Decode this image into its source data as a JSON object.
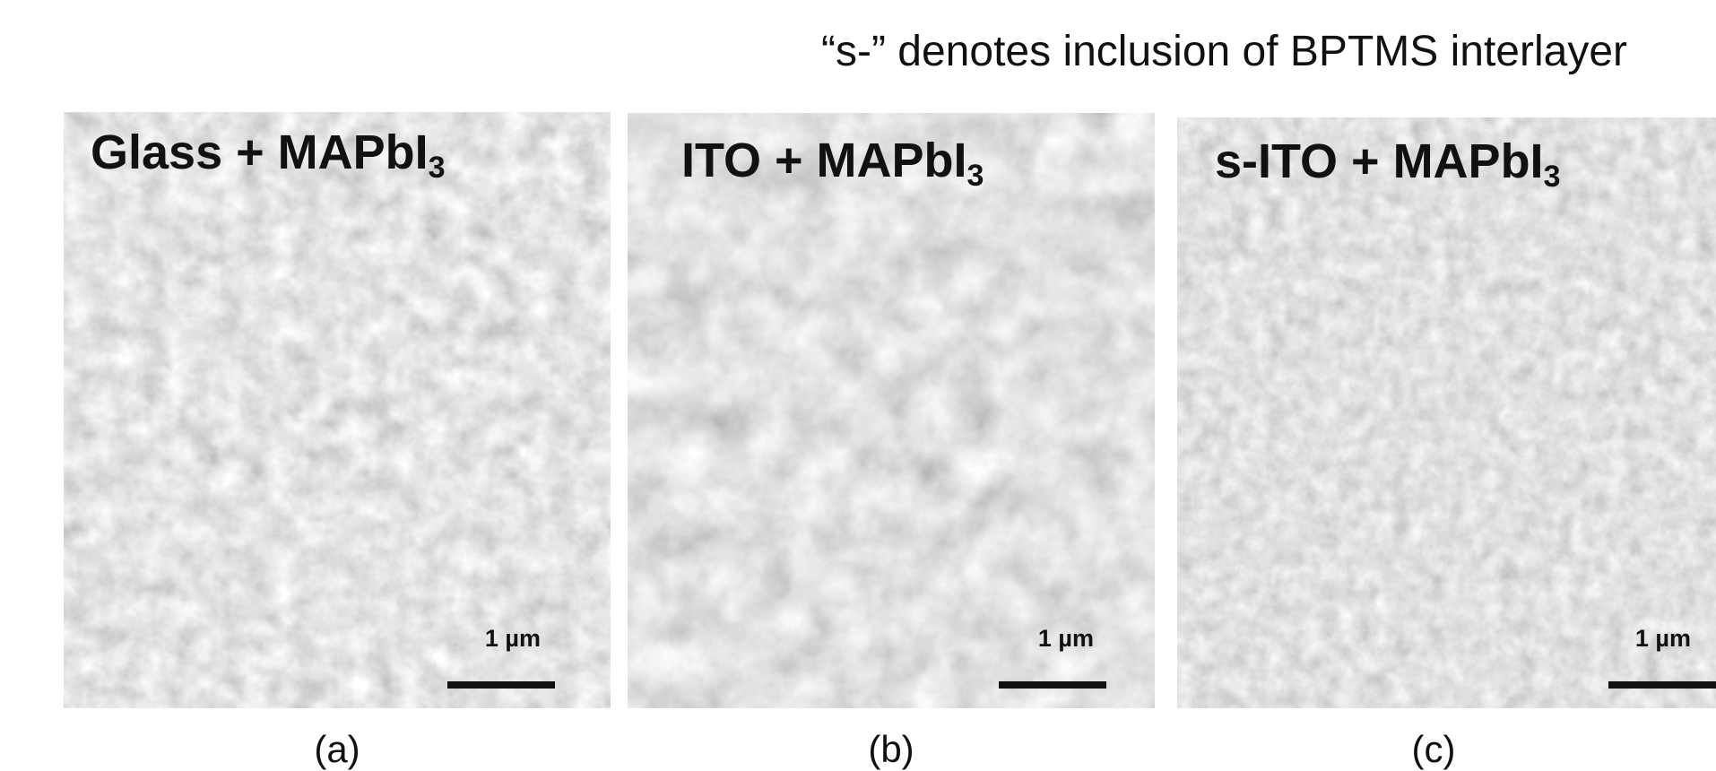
{
  "header": {
    "note": "“s-” denotes inclusion of BPTMS interlayer"
  },
  "panels": [
    {
      "title": "Glass + MAPbI",
      "subscript": "3",
      "scale_bar": "1 µm",
      "label": "(a)"
    },
    {
      "title": "ITO + MAPbI",
      "subscript": "3",
      "scale_bar": "1 µm",
      "label": "(b)"
    },
    {
      "title": "s-ITO + MAPbI",
      "subscript": "3",
      "scale_bar": "1 µm",
      "label": "(c)"
    }
  ]
}
